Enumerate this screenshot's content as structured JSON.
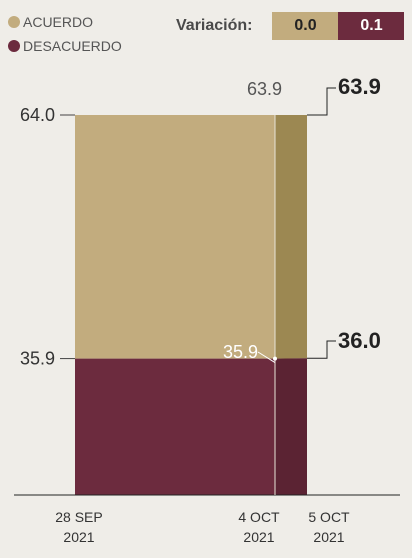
{
  "legend": {
    "items": [
      {
        "label": "ACUERDO",
        "color": "#c2ac7e"
      },
      {
        "label": "DESACUERDO",
        "color": "#6c2b3e"
      }
    ]
  },
  "variation": {
    "label": "Variación:",
    "values": [
      "0.0",
      "0.1"
    ],
    "colors": [
      "#c2ac7e",
      "#6c2b3e"
    ]
  },
  "chart_data": {
    "type": "area",
    "x": [
      "28 SEP\n2021",
      "4 OCT\n2021",
      "5 OCT\n2021"
    ],
    "series": [
      {
        "name": "ACUERDO",
        "values": [
          64.0,
          63.9,
          63.9
        ],
        "color": "#c2ac7e",
        "dark_color": "#9c8852"
      },
      {
        "name": "DESACUERDO",
        "values": [
          35.9,
          35.9,
          36.0
        ],
        "color": "#6c2b3e",
        "dark_color": "#5b2333"
      }
    ],
    "stacked": true,
    "ylim": [
      0,
      100
    ],
    "data_labels": [
      {
        "series": 0,
        "point": 0,
        "text": "64.0"
      },
      {
        "series": 0,
        "point": 1,
        "text": "63.9"
      },
      {
        "series": 0,
        "point": 2,
        "text": "63.9"
      },
      {
        "series": 1,
        "point": 0,
        "text": "35.9"
      },
      {
        "series": 1,
        "point": 1,
        "text": "35.9"
      },
      {
        "series": 1,
        "point": 2,
        "text": "36.0"
      }
    ]
  }
}
